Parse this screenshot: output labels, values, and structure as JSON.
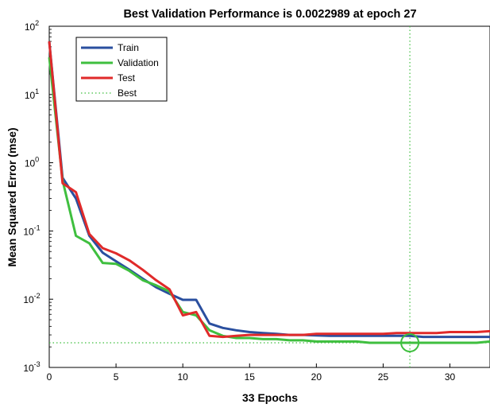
{
  "chart_data": {
    "type": "line",
    "title": "Best Validation Performance is 0.0022989 at epoch 27",
    "xlabel": "33 Epochs",
    "ylabel": "Mean Squared Error  (mse)",
    "xlim": [
      0,
      33
    ],
    "ylim": [
      0.001,
      100
    ],
    "yscale": "log",
    "x_ticks": [
      "0",
      "5",
      "10",
      "15",
      "20",
      "25",
      "30"
    ],
    "y_tick_bases": [
      "10",
      "10",
      "10",
      "10",
      "10",
      "10"
    ],
    "y_tick_exponents": [
      "-3",
      "-2",
      "-1",
      "0",
      "1",
      "2"
    ],
    "grid": false,
    "legend_position": "top-left",
    "legend": [
      "Train",
      "Validation",
      "Test",
      "Best"
    ],
    "series": [
      {
        "name": "Train",
        "color": "#2a4f9f",
        "x": [
          0,
          1,
          2,
          3,
          4,
          5,
          6,
          7,
          8,
          9,
          10,
          11,
          12,
          13,
          14,
          15,
          16,
          17,
          18,
          19,
          20,
          21,
          22,
          23,
          24,
          25,
          26,
          27,
          28,
          29,
          30,
          31,
          32,
          33
        ],
        "y": [
          60,
          0.6,
          0.3,
          0.085,
          0.048,
          0.036,
          0.027,
          0.02,
          0.015,
          0.012,
          0.0098,
          0.0098,
          0.0044,
          0.0038,
          0.0035,
          0.0033,
          0.0032,
          0.0031,
          0.003,
          0.003,
          0.00295,
          0.0029,
          0.0029,
          0.0029,
          0.0029,
          0.0029,
          0.0029,
          0.0029,
          0.0028,
          0.0028,
          0.0028,
          0.0028,
          0.0028,
          0.0028
        ]
      },
      {
        "name": "Validation",
        "color": "#3fbf3f",
        "x": [
          0,
          1,
          2,
          3,
          4,
          5,
          6,
          7,
          8,
          9,
          10,
          11,
          12,
          13,
          14,
          15,
          16,
          17,
          18,
          19,
          20,
          21,
          22,
          23,
          24,
          25,
          26,
          27,
          28,
          29,
          30,
          31,
          32,
          33
        ],
        "y": [
          35,
          0.55,
          0.085,
          0.066,
          0.034,
          0.033,
          0.026,
          0.019,
          0.016,
          0.013,
          0.0065,
          0.0058,
          0.0035,
          0.0029,
          0.0027,
          0.0027,
          0.0026,
          0.0026,
          0.0025,
          0.0025,
          0.0024,
          0.0024,
          0.0024,
          0.0024,
          0.0023,
          0.0023,
          0.0023,
          0.0022989,
          0.0023,
          0.0023,
          0.0023,
          0.0023,
          0.0023,
          0.0024
        ]
      },
      {
        "name": "Test",
        "color": "#e02a2a",
        "x": [
          0,
          1,
          2,
          3,
          4,
          5,
          6,
          7,
          8,
          9,
          10,
          11,
          12,
          13,
          14,
          15,
          16,
          17,
          18,
          19,
          20,
          21,
          22,
          23,
          24,
          25,
          26,
          27,
          28,
          29,
          30,
          31,
          32,
          33
        ],
        "y": [
          60,
          0.5,
          0.37,
          0.09,
          0.056,
          0.047,
          0.037,
          0.027,
          0.019,
          0.014,
          0.0058,
          0.0065,
          0.0029,
          0.0028,
          0.0029,
          0.003,
          0.003,
          0.003,
          0.003,
          0.003,
          0.0031,
          0.0031,
          0.0031,
          0.0031,
          0.0031,
          0.0031,
          0.0032,
          0.0032,
          0.0032,
          0.0032,
          0.0033,
          0.0033,
          0.0033,
          0.0034
        ]
      }
    ],
    "best": {
      "name": "Best",
      "epoch": 27,
      "value": 0.0022989,
      "color": "#3fbf3f"
    }
  }
}
